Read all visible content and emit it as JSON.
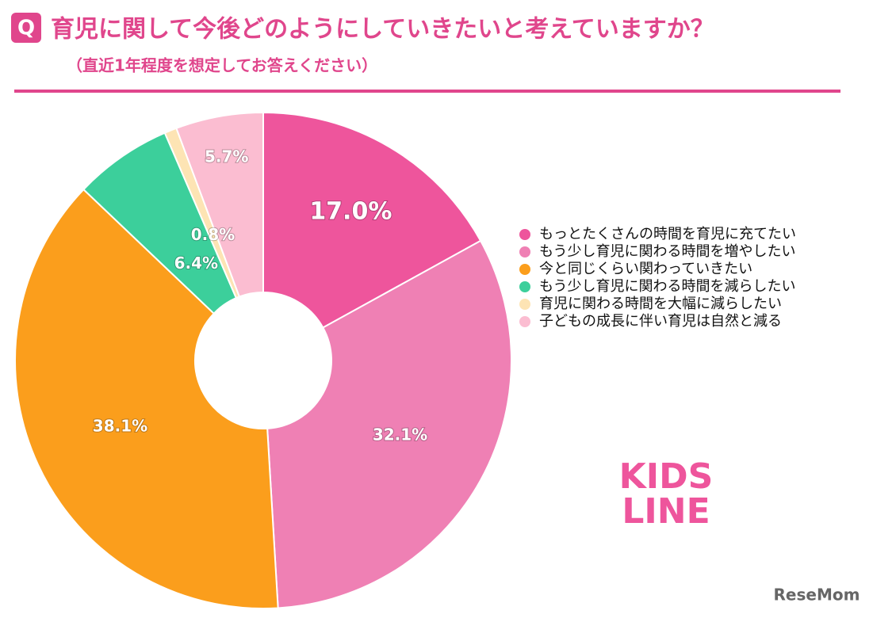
{
  "chart_data": {
    "type": "donut",
    "badge": "Q",
    "title": "育児に関して今後どのようにしていきたいと考えていますか？",
    "subtitle": "（直近1年程度を想定してお答えください）",
    "categories": [
      "もっとたくさんの時間を育児に充てたい",
      "もう少し育児に関わる時間を増やしたい",
      "今と同じくらい関わっていきたい",
      "もう少し育児に関わる時間を減らしたい",
      "育児に関わる時間を大幅に減らしたい",
      "子どもの成長に伴い育児は自然と減る"
    ],
    "values": [
      17.0,
      32.1,
      38.1,
      6.4,
      0.8,
      5.7
    ],
    "value_labels": [
      "17.0%",
      "32.1%",
      "38.1%",
      "6.4%",
      "0.8%",
      "5.7%"
    ],
    "colors": [
      "#ee559c",
      "#ef80b4",
      "#fb9e1c",
      "#3ccf9b",
      "#fde4b4",
      "#fbbdd1"
    ],
    "logo": [
      "KIDS",
      "LINE"
    ],
    "watermark": "ReseMom"
  }
}
